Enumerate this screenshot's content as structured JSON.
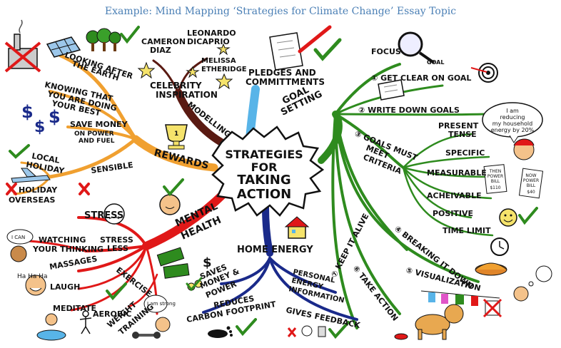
{
  "caption": "Example: Mind Mapping ‘Strategies for Climate Change’ Essay Topic",
  "center": [
    "STRATEGIES",
    "FOR",
    "TAKING",
    "ACTION"
  ],
  "branches": {
    "rewards": {
      "label": "REWARDS",
      "color": "#f0a030",
      "items": [
        "LOOKING AFTER",
        "THE EARTH",
        "KNOWING THAT",
        "YOU ARE DOING",
        "YOUR BEST",
        "SAVE MONEY",
        "ON POWER",
        "AND FUEL",
        "SENSIBLE",
        "LOCAL",
        "HOLIDAY",
        "HOLIDAY",
        "OVERSEAS"
      ]
    },
    "modelling": {
      "label": "MODELLING",
      "color": "#5a1a12",
      "items": [
        "CELEBRITY",
        "INSPIRATION",
        "CAMERON",
        "DIAZ",
        "LEONARDO",
        "DICAPRIO",
        "MELISSA",
        "ETHERIDGE"
      ]
    },
    "pledges": {
      "label1": "PLEDGES AND",
      "label2": "COMMITTMENTS",
      "color": "#58b4e8"
    },
    "goal": {
      "label1": "GOAL",
      "label2": "SETTING",
      "color": "#2e8b1e",
      "items": [
        "FOCUS",
        "GOAL",
        "① GET CLEAR ON GOAL",
        "② WRITE DOWN GOALS",
        "③ GOALS MUST",
        "MEET",
        "CRITERIA",
        "PRESENT",
        "TENSE",
        "SPECIFIC",
        "MEASURABLE",
        "ACHEIVABLE",
        "POSITIVE",
        "TIME LIMIT",
        "④ BREAKING IT DOWN",
        "⑤ VISUALIZATION",
        "⑥ TAKE ACTION",
        "⑦ KEEP IT ALIVE"
      ],
      "bubble": [
        "I am",
        "reducing",
        "my household",
        "energy by 20%"
      ],
      "bills": [
        "THEN",
        "POWER",
        "BILL",
        "$110",
        "NOW",
        "POWER",
        "BILL",
        "$40"
      ]
    },
    "mental": {
      "label1": "MENTAL",
      "label2": "HEALTH",
      "color": "#e01818",
      "items": [
        "STRESS",
        "STRESS",
        "LESS",
        "WATCHING",
        "YOUR THINKING",
        "MASSAGES",
        "LAUGH",
        "MEDITATE",
        "EXERCISE",
        "AEROBIC",
        "WEIGHT",
        "TRAINING"
      ],
      "bubbles": [
        "I CAN",
        "Ha Ha Ha",
        "I am strong"
      ]
    },
    "home": {
      "label": "HOME ENERGY",
      "color": "#1a2a8a",
      "items": [
        "$",
        "SAVES",
        "MONEY &",
        "POWER",
        "REDUCES",
        "CARBON FOOTPRINT",
        "PERSONAL",
        "ENERGY",
        "INFORMATION",
        "GIVES FEEDBACK"
      ]
    }
  }
}
